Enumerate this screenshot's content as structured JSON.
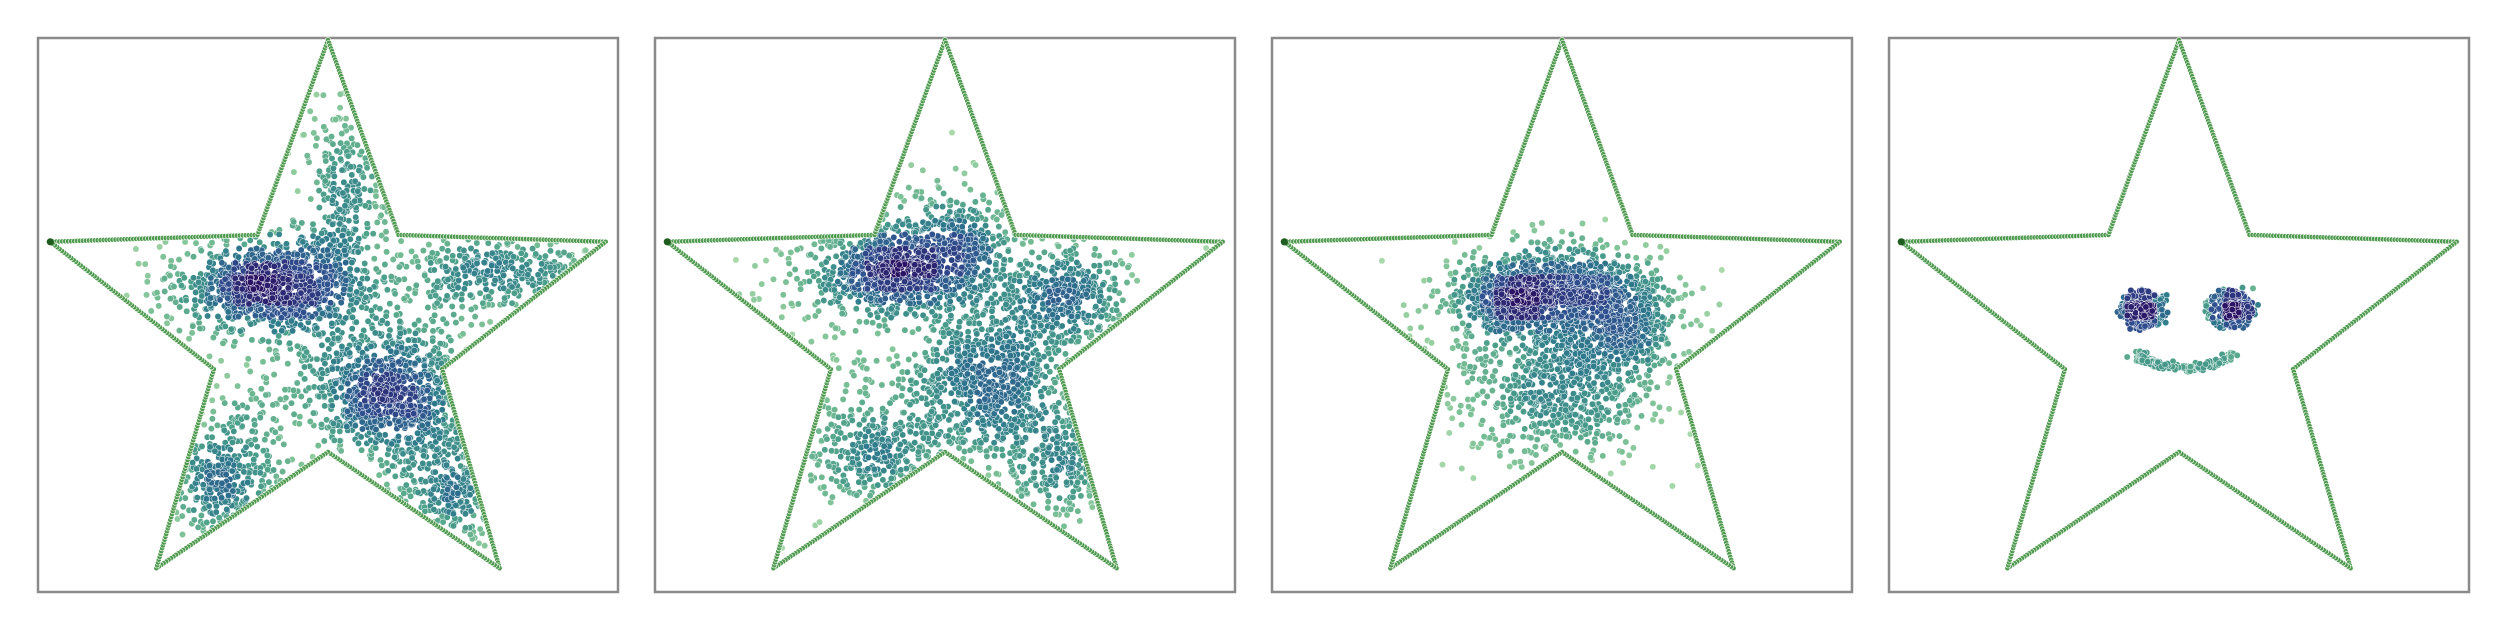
{
  "chart_data": [
    {
      "type": "scatter",
      "title": "",
      "xlabel": "",
      "ylabel": "",
      "grid": false,
      "ticks": false,
      "boundary": {
        "shape": "five-pointed star",
        "color": "#4e9a4e",
        "end_color": "#1f5c1f"
      },
      "colormap": [
        "#2b1466",
        "#2f4f8f",
        "#2e7a8c",
        "#4a9e8a",
        "#79bf95",
        "#b3dfae"
      ],
      "series": [
        {
          "clusters": [
            {
              "x": -0.18,
              "y": 0.16,
              "sx": 0.16,
              "sy": 0.08,
              "n": 900
            },
            {
              "x": 0.22,
              "y": -0.2,
              "sx": 0.15,
              "sy": 0.12,
              "n": 800
            },
            {
              "x": 0.05,
              "y": 0.45,
              "sx": 0.06,
              "sy": 0.18,
              "n": 250
            },
            {
              "x": 0.58,
              "y": 0.2,
              "sx": 0.16,
              "sy": 0.06,
              "n": 300
            },
            {
              "x": -0.35,
              "y": -0.5,
              "sx": 0.1,
              "sy": 0.12,
              "n": 300
            },
            {
              "x": 0.45,
              "y": -0.5,
              "sx": 0.12,
              "sy": 0.12,
              "n": 250
            },
            {
              "x": 0.0,
              "y": 0.0,
              "sx": 0.4,
              "sy": 0.3,
              "n": 400
            }
          ]
        },
        {
          "clusters": [
            {
              "x": -0.18,
              "y": 0.22,
              "sx": 0.14,
              "sy": 0.08,
              "n": 700
            },
            {
              "x": 0.16,
              "y": -0.18,
              "sx": 0.14,
              "sy": 0.14,
              "n": 650
            },
            {
              "x": 0.4,
              "y": 0.12,
              "sx": 0.12,
              "sy": 0.08,
              "n": 350
            },
            {
              "x": 0.05,
              "y": 0.3,
              "sx": 0.1,
              "sy": 0.1,
              "n": 300
            },
            {
              "x": -0.25,
              "y": -0.4,
              "sx": 0.14,
              "sy": 0.1,
              "n": 300
            },
            {
              "x": 0.42,
              "y": -0.45,
              "sx": 0.12,
              "sy": 0.1,
              "n": 200
            },
            {
              "x": 0.0,
              "y": 0.0,
              "sx": 0.38,
              "sy": 0.3,
              "n": 350
            }
          ]
        },
        {
          "clusters": [
            {
              "x": -0.15,
              "y": 0.12,
              "sx": 0.11,
              "sy": 0.07,
              "n": 650
            },
            {
              "x": 0.18,
              "y": 0.05,
              "sx": 0.12,
              "sy": 0.1,
              "n": 650
            },
            {
              "x": 0.0,
              "y": -0.22,
              "sx": 0.16,
              "sy": 0.12,
              "n": 500
            },
            {
              "x": 0.02,
              "y": 0.18,
              "sx": 0.1,
              "sy": 0.06,
              "n": 250
            },
            {
              "x": -0.1,
              "y": -0.05,
              "sx": 0.22,
              "sy": 0.18,
              "n": 300
            }
          ]
        },
        {
          "clusters": [
            {
              "x": -0.13,
              "y": 0.08,
              "sx": 0.03,
              "sy": 0.025,
              "n": 220
            },
            {
              "x": 0.19,
              "y": 0.08,
              "sx": 0.03,
              "sy": 0.025,
              "n": 220
            }
          ],
          "rings": [
            {
              "x": -0.12,
              "y": 0.08,
              "r": 0.07,
              "n": 90
            },
            {
              "x": 0.17,
              "y": 0.08,
              "r": 0.07,
              "n": 90
            }
          ],
          "arcs": [
            {
              "x": 0.02,
              "y": -0.02,
              "r": 0.19,
              "from_deg": 205,
              "to_deg": 330,
              "n": 170
            }
          ]
        }
      ]
    }
  ]
}
